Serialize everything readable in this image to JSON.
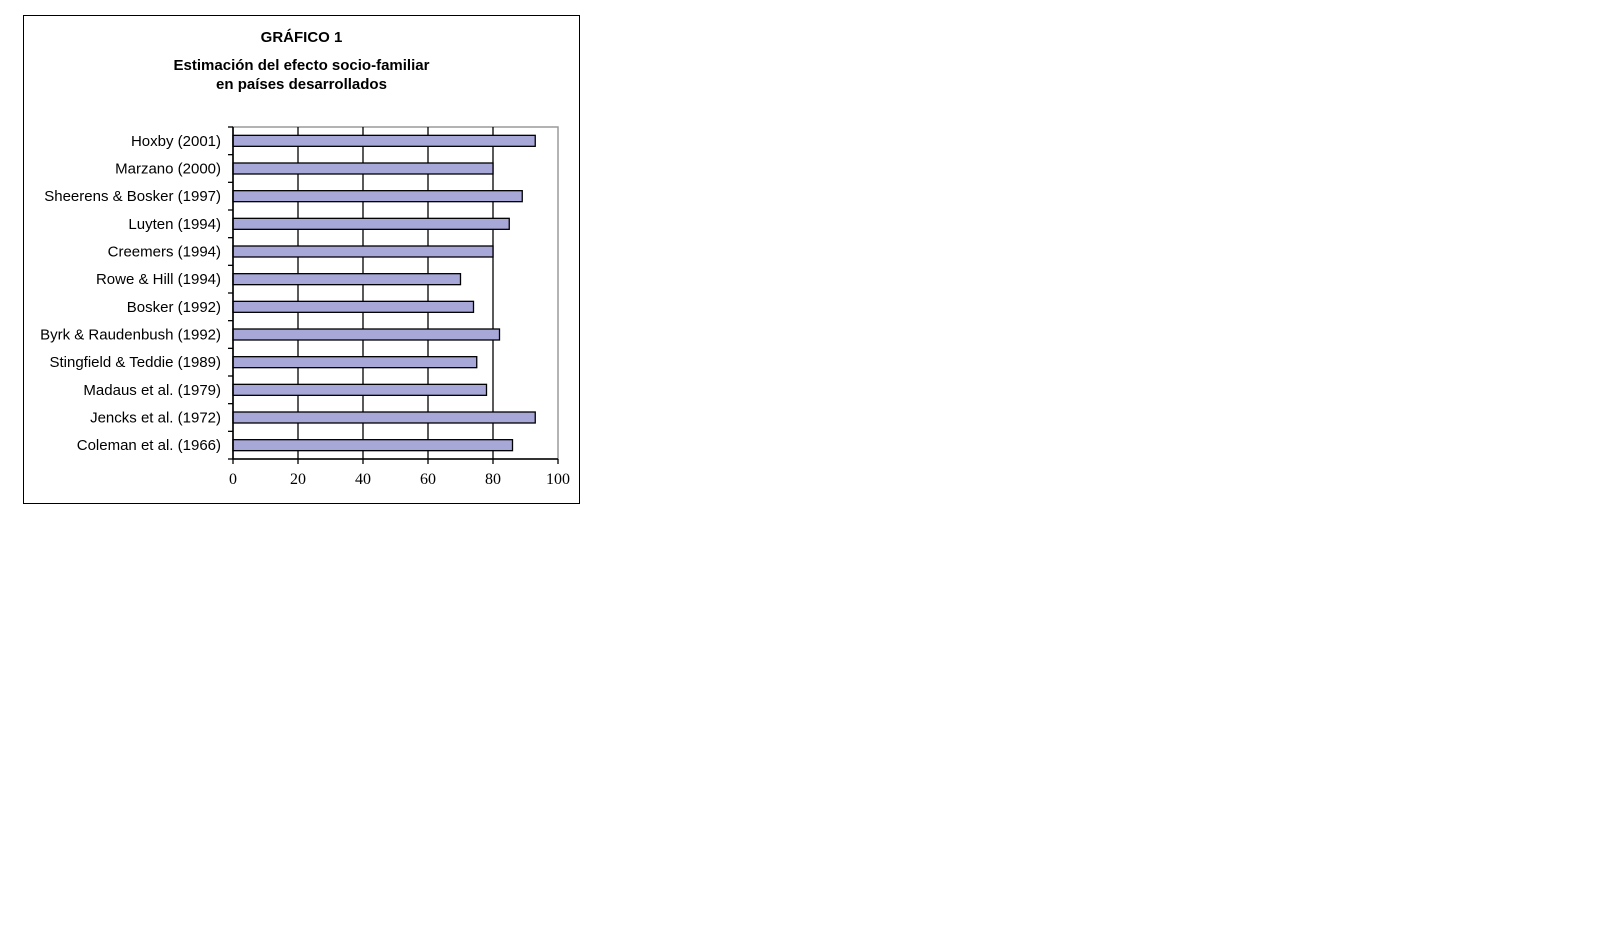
{
  "figure": {
    "label": "GRÁFICO 1",
    "title_line1": "Estimación del efecto socio-familiar",
    "title_line2": "en países desarrollados"
  },
  "chart_data": {
    "type": "bar",
    "orientation": "horizontal",
    "title": "Estimación del efecto socio-familiar en países desarrollados",
    "categories": [
      "Hoxby (2001)",
      "Marzano (2000)",
      "Sheerens & Bosker (1997)",
      "Luyten (1994)",
      "Creemers (1994)",
      "Rowe & Hill (1994)",
      "Bosker (1992)",
      "Byrk & Raudenbush (1992)",
      "Stingfield & Teddie (1989)",
      "Madaus et al. (1979)",
      "Jencks et al. (1972)",
      "Coleman et al. (1966)"
    ],
    "values": [
      93,
      80,
      89,
      85,
      80,
      70,
      74,
      82,
      75,
      78,
      93,
      86
    ],
    "xlim": [
      0,
      100
    ],
    "xticks": [
      0,
      20,
      40,
      60,
      80,
      100
    ],
    "xtick_labels": [
      "0",
      "20",
      "40",
      "60",
      "80",
      "100"
    ],
    "xlabel": "",
    "ylabel": "",
    "grid": "vertical",
    "legend": "none",
    "colors": {
      "bar_fill": "#A7A7D8",
      "bar_stroke": "#000000",
      "grid": "#000000",
      "plot_border": "#9A9A9A"
    }
  }
}
